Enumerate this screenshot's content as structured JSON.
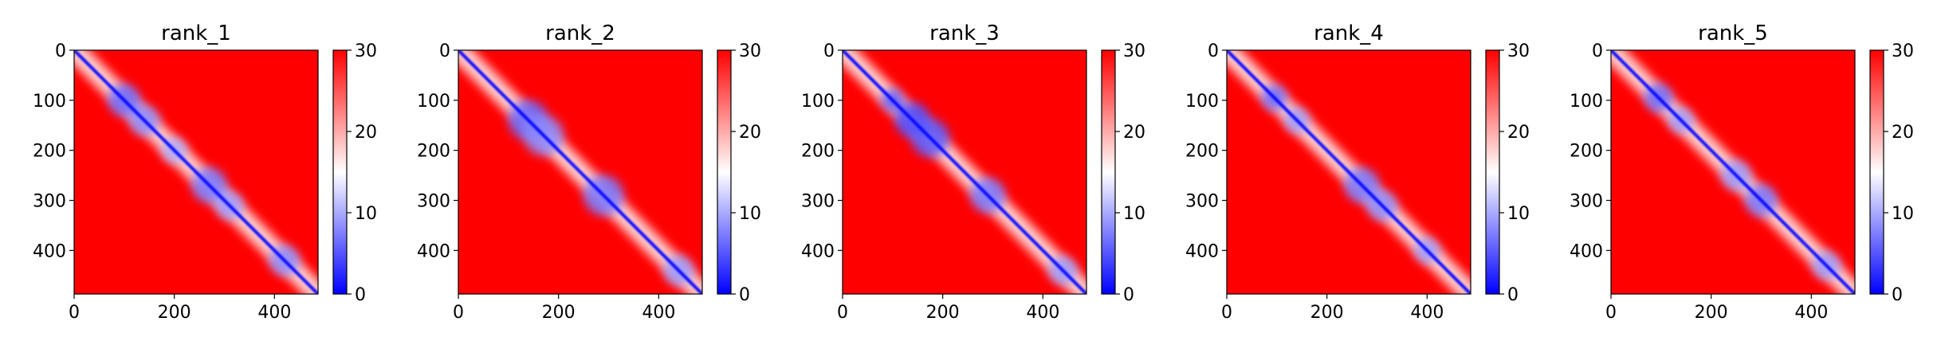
{
  "figure": {
    "colorscale": {
      "min": 0,
      "max": 30,
      "low_color": "#0000ff",
      "mid_color": "#ffffff",
      "high_color": "#ff0000",
      "ticks": [
        0,
        10,
        20,
        30
      ],
      "tick_labels": [
        "0",
        "10",
        "20",
        "30"
      ]
    }
  },
  "chart_data": [
    {
      "type": "heatmap",
      "title": "rank_1",
      "xlabel": "",
      "ylabel": "",
      "xlim": [
        0,
        487
      ],
      "ylim": [
        487,
        0
      ],
      "x_ticks": [
        0,
        200,
        400
      ],
      "y_ticks": [
        0,
        100,
        200,
        300,
        400
      ],
      "x_tick_labels": [
        "0",
        "200",
        "400"
      ],
      "y_tick_labels": [
        "0",
        "100",
        "200",
        "300",
        "400"
      ],
      "colorbar_ticks": [
        "0",
        "10",
        "20",
        "30"
      ],
      "diagonal_width": 10,
      "blobs": [
        {
          "i": 100,
          "j": 100,
          "r": 32,
          "value": 6
        },
        {
          "i": 140,
          "j": 140,
          "r": 30,
          "value": 8
        },
        {
          "i": 200,
          "j": 200,
          "r": 25,
          "value": 10
        },
        {
          "i": 270,
          "j": 270,
          "r": 35,
          "value": 7
        },
        {
          "i": 310,
          "j": 310,
          "r": 28,
          "value": 9
        },
        {
          "i": 420,
          "j": 420,
          "r": 30,
          "value": 8
        }
      ]
    },
    {
      "type": "heatmap",
      "title": "rank_2",
      "xlabel": "",
      "ylabel": "",
      "xlim": [
        0,
        487
      ],
      "ylim": [
        487,
        0
      ],
      "x_ticks": [
        0,
        200,
        400
      ],
      "y_ticks": [
        0,
        100,
        200,
        300,
        400
      ],
      "x_tick_labels": [
        "0",
        "200",
        "400"
      ],
      "y_tick_labels": [
        "0",
        "100",
        "200",
        "300",
        "400"
      ],
      "colorbar_ticks": [
        "0",
        "10",
        "20",
        "30"
      ],
      "diagonal_width": 10,
      "blobs": [
        {
          "i": 140,
          "j": 140,
          "r": 40,
          "value": 6
        },
        {
          "i": 170,
          "j": 170,
          "r": 40,
          "value": 8
        },
        {
          "i": 290,
          "j": 290,
          "r": 40,
          "value": 7
        },
        {
          "i": 440,
          "j": 440,
          "r": 30,
          "value": 9
        }
      ]
    },
    {
      "type": "heatmap",
      "title": "rank_3",
      "xlabel": "",
      "ylabel": "",
      "xlim": [
        0,
        487
      ],
      "ylim": [
        487,
        0
      ],
      "x_ticks": [
        0,
        200,
        400
      ],
      "y_ticks": [
        0,
        100,
        200,
        300,
        400
      ],
      "x_tick_labels": [
        "0",
        "200",
        "400"
      ],
      "y_tick_labels": [
        "0",
        "100",
        "200",
        "300",
        "400"
      ],
      "colorbar_ticks": [
        "0",
        "10",
        "20",
        "30"
      ],
      "diagonal_width": 10,
      "blobs": [
        {
          "i": 100,
          "j": 100,
          "r": 22,
          "value": 5
        },
        {
          "i": 140,
          "j": 140,
          "r": 35,
          "value": 4
        },
        {
          "i": 175,
          "j": 175,
          "r": 38,
          "value": 5
        },
        {
          "i": 290,
          "j": 290,
          "r": 35,
          "value": 7
        },
        {
          "i": 440,
          "j": 440,
          "r": 28,
          "value": 9
        }
      ]
    },
    {
      "type": "heatmap",
      "title": "rank_4",
      "xlabel": "",
      "ylabel": "",
      "xlim": [
        0,
        487
      ],
      "ylim": [
        487,
        0
      ],
      "x_ticks": [
        0,
        200,
        400
      ],
      "y_ticks": [
        0,
        100,
        200,
        300,
        400
      ],
      "x_tick_labels": [
        "0",
        "200",
        "400"
      ],
      "y_tick_labels": [
        "0",
        "100",
        "200",
        "300",
        "400"
      ],
      "colorbar_ticks": [
        "0",
        "10",
        "20",
        "30"
      ],
      "diagonal_width": 10,
      "blobs": [
        {
          "i": 95,
          "j": 95,
          "r": 25,
          "value": 6
        },
        {
          "i": 140,
          "j": 140,
          "r": 25,
          "value": 9
        },
        {
          "i": 270,
          "j": 270,
          "r": 35,
          "value": 7
        },
        {
          "i": 310,
          "j": 310,
          "r": 30,
          "value": 8
        },
        {
          "i": 400,
          "j": 400,
          "r": 25,
          "value": 9
        }
      ]
    },
    {
      "type": "heatmap",
      "title": "rank_5",
      "xlabel": "",
      "ylabel": "",
      "xlim": [
        0,
        487
      ],
      "ylim": [
        487,
        0
      ],
      "x_ticks": [
        0,
        200,
        400
      ],
      "y_ticks": [
        0,
        100,
        200,
        300,
        400
      ],
      "x_tick_labels": [
        "0",
        "200",
        "400"
      ],
      "y_tick_labels": [
        "0",
        "100",
        "200",
        "300",
        "400"
      ],
      "colorbar_ticks": [
        "0",
        "10",
        "20",
        "30"
      ],
      "diagonal_width": 10,
      "blobs": [
        {
          "i": 95,
          "j": 95,
          "r": 28,
          "value": 6
        },
        {
          "i": 140,
          "j": 140,
          "r": 25,
          "value": 9
        },
        {
          "i": 250,
          "j": 250,
          "r": 30,
          "value": 9
        },
        {
          "i": 300,
          "j": 300,
          "r": 32,
          "value": 7
        },
        {
          "i": 430,
          "j": 430,
          "r": 28,
          "value": 9
        }
      ]
    }
  ]
}
